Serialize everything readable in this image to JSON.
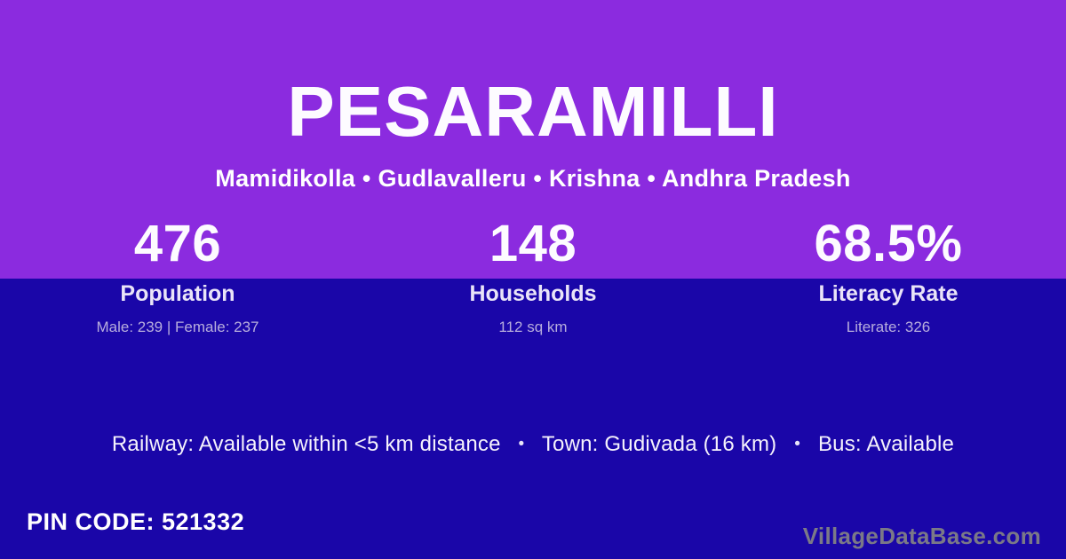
{
  "header": {
    "title": "PESARAMILLI",
    "subtitle": "Mamidikolla • Gudlavalleru • Krishna • Andhra Pradesh"
  },
  "stats": [
    {
      "value": "476",
      "label": "Population",
      "detail": "Male: 239 | Female: 237"
    },
    {
      "value": "148",
      "label": "Households",
      "detail": "112 sq km"
    },
    {
      "value": "68.5%",
      "label": "Literacy Rate",
      "detail": "Literate: 326"
    }
  ],
  "amenities": {
    "items": [
      "Railway: Available within <5 km distance",
      "Town: Gudivada (16 km)",
      "Bus: Available"
    ],
    "separator": "•"
  },
  "footer": {
    "pin_code": "PIN CODE: 521332",
    "watermark": "VillageDataBase.com"
  },
  "colors": {
    "purple": "#8b2bdf",
    "navy": "#1a06a8",
    "watermark": "#7b7987"
  }
}
